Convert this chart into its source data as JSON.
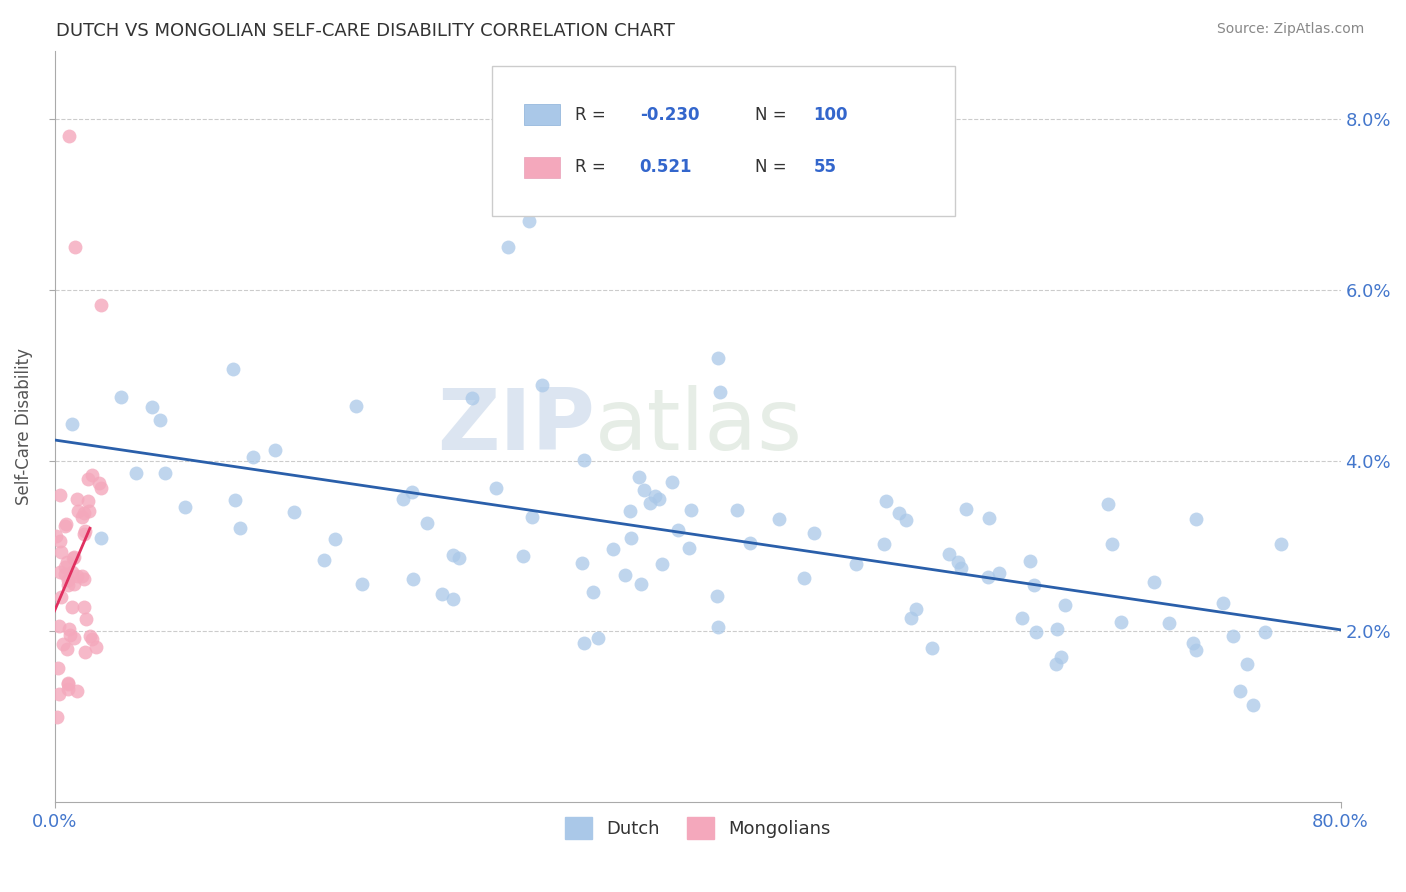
{
  "title": "DUTCH VS MONGOLIAN SELF-CARE DISABILITY CORRELATION CHART",
  "source": "Source: ZipAtlas.com",
  "ylabel": "Self-Care Disability",
  "xlim": [
    0.0,
    0.8
  ],
  "ylim": [
    0.0,
    0.088
  ],
  "yticks": [
    0.02,
    0.04,
    0.06,
    0.08
  ],
  "ytick_labels": [
    "2.0%",
    "4.0%",
    "6.0%",
    "8.0%"
  ],
  "xtick_labels": [
    "0.0%",
    "80.0%"
  ],
  "dutch_R": -0.23,
  "dutch_N": 100,
  "mongolian_R": 0.521,
  "mongolian_N": 55,
  "dutch_color": "#aac8e8",
  "mongolian_color": "#f4a8bc",
  "dutch_line_color": "#2a5faa",
  "mongolian_line_color": "#e03060",
  "watermark_zip": "ZIP",
  "watermark_atlas": "atlas",
  "legend_dutch_label": "Dutch",
  "legend_mongolian_label": "Mongolians",
  "title_color": "#333333",
  "source_color": "#888888",
  "tick_color": "#4477cc",
  "axis_color": "#aaaaaa",
  "grid_color": "#cccccc"
}
